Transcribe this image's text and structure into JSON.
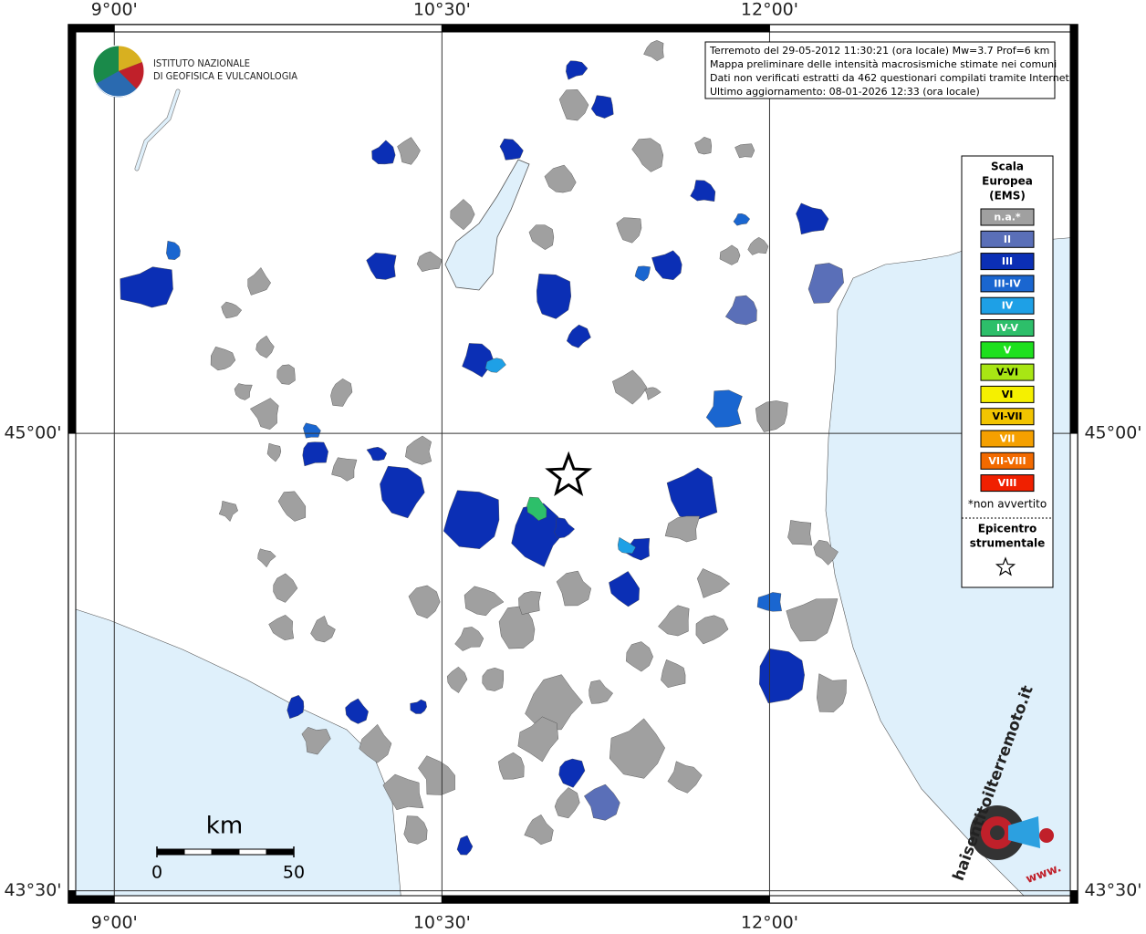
{
  "map": {
    "xlim": [
      8.79,
      13.41
    ],
    "ylim": [
      43.46,
      46.34
    ],
    "xticks": [
      {
        "value": 9,
        "label": "9°00'"
      },
      {
        "value": 10.5,
        "label": "10°30'"
      },
      {
        "value": 12,
        "label": "12°00'"
      }
    ],
    "yticks": [
      {
        "value": 43.5,
        "label": "43°30'"
      },
      {
        "value": 45,
        "label": "45°00'"
      }
    ],
    "grid": true,
    "info": [
      "Terremoto del 29-05-2012 11:30:21 (ora locale) Mw=3.7 Prof=6 km",
      "Mappa preliminare delle intensità macrosismiche stimate nei comuni",
      "Dati non verificati estratti da 462 questionari compilati tramite Internet.",
      "Ultimo aggiornamento: 08-01-2026 12:33 (ora locale)"
    ],
    "institute": [
      "ISTITUTO NAZIONALE",
      "DI GEOFISICA E VULCANOLOGIA"
    ],
    "legend": {
      "title": [
        "Scala",
        "Europea",
        "(EMS)"
      ],
      "items": [
        {
          "label": "n.a.*",
          "color": "#a0a0a0"
        },
        {
          "label": "II",
          "color": "#5a6fb8"
        },
        {
          "label": "III",
          "color": "#0b2fb5"
        },
        {
          "label": "III-IV",
          "color": "#1a66d0"
        },
        {
          "label": "IV",
          "color": "#1ea0e6"
        },
        {
          "label": "IV-V",
          "color": "#2dbf6a"
        },
        {
          "label": "V",
          "color": "#1ee01e"
        },
        {
          "label": "V-VI",
          "color": "#a8e614"
        },
        {
          "label": "VI",
          "color": "#f5f000"
        },
        {
          "label": "VI-VII",
          "color": "#f2c400"
        },
        {
          "label": "VII",
          "color": "#f5a000"
        },
        {
          "label": "VII-VIII",
          "color": "#f26a00"
        },
        {
          "label": "VIII",
          "color": "#f02000"
        }
      ],
      "note": "*non avvertito",
      "epicenter_label": [
        "Epicentro",
        "strumentale"
      ]
    },
    "epicenter": {
      "lon": 11.08,
      "lat": 44.86
    },
    "scale": {
      "unit": "km",
      "ticks": [
        0,
        50
      ]
    },
    "site_logo": [
      "haisentitoilterremoto.it",
      "www."
    ]
  }
}
